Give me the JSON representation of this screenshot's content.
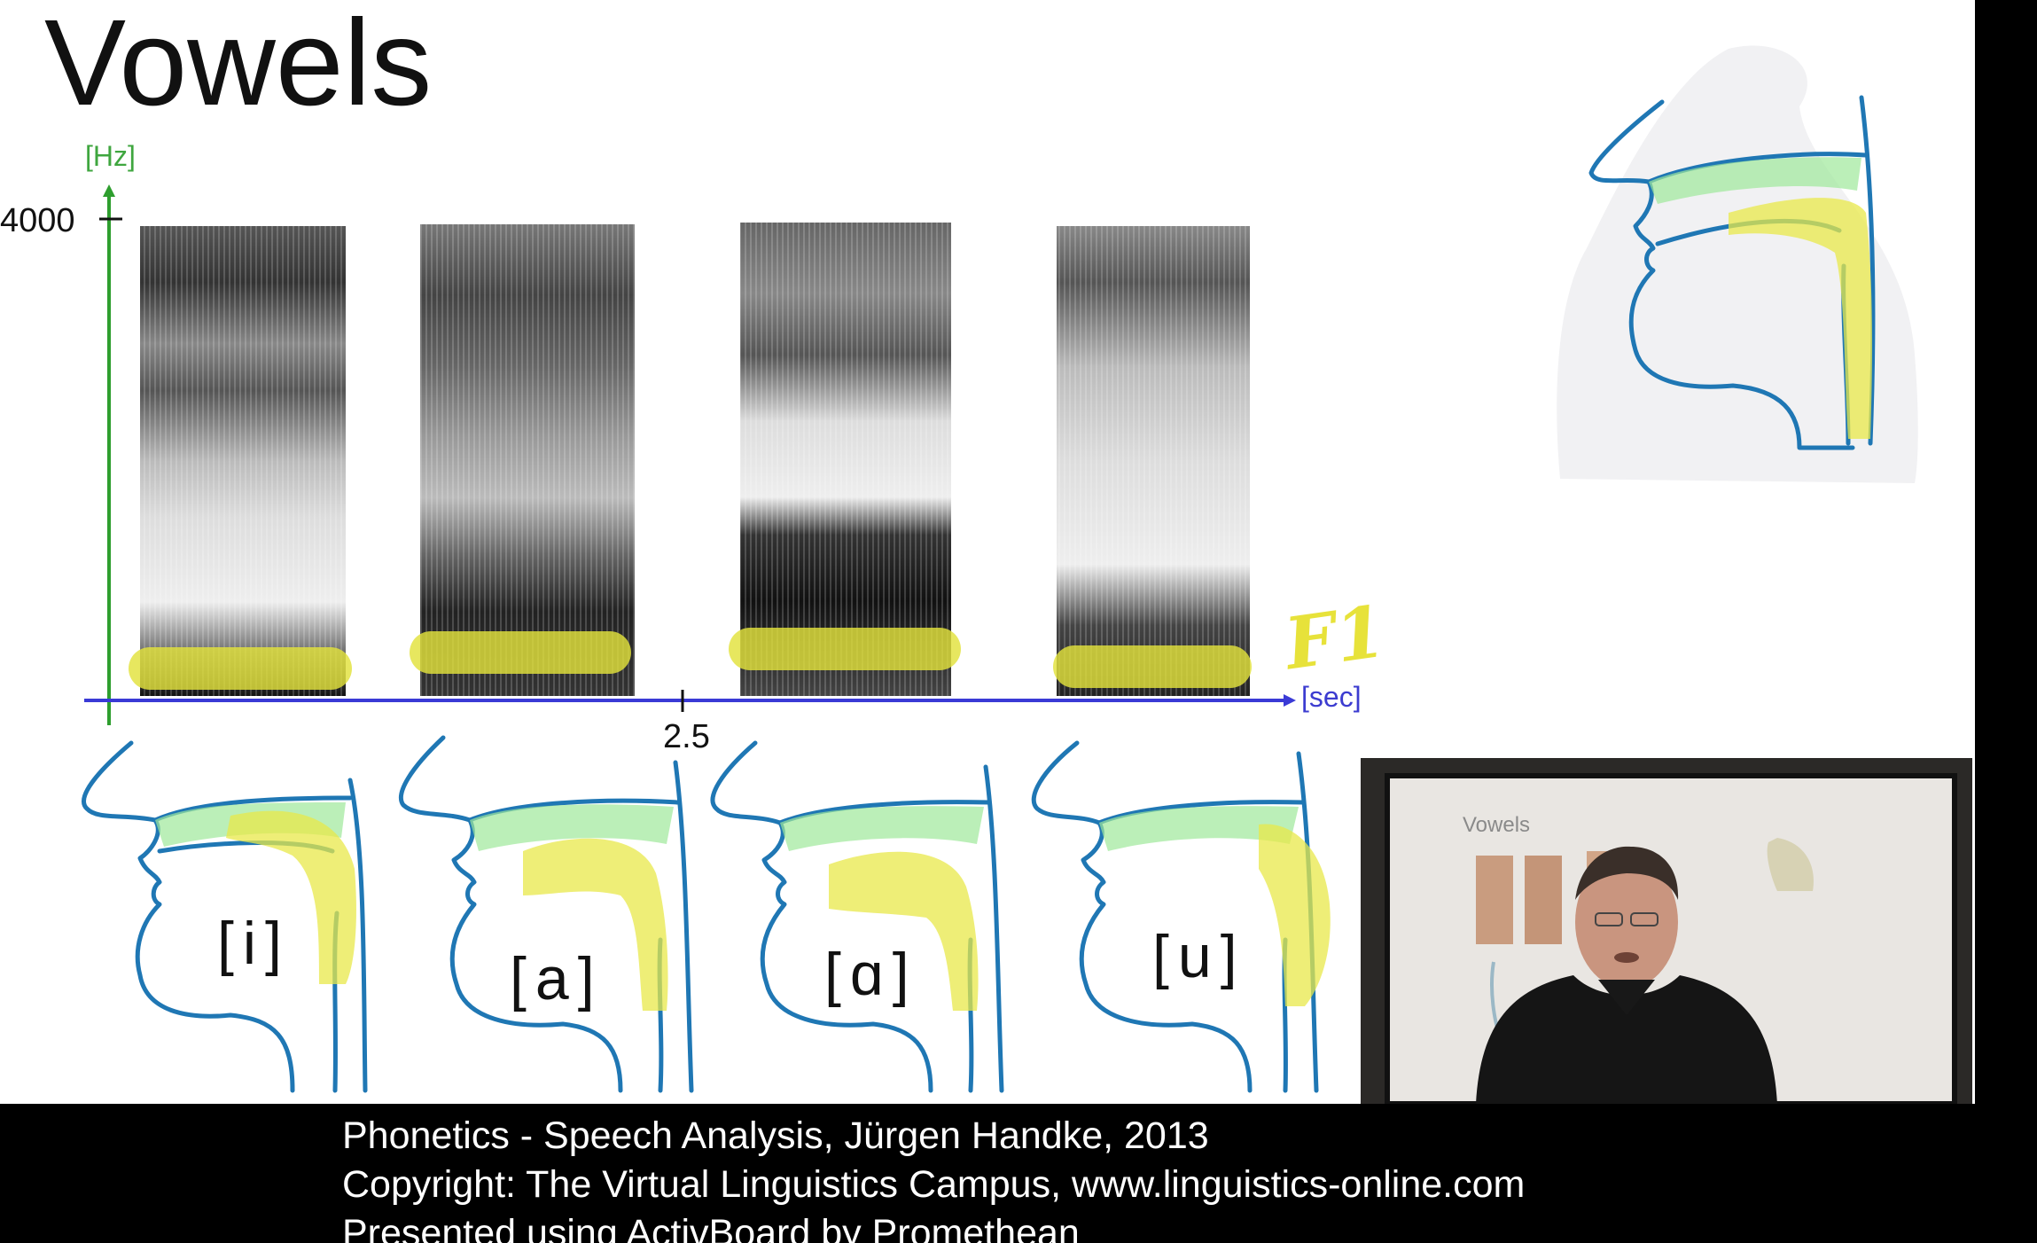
{
  "slide": {
    "title": "Vowels"
  },
  "spectrogram": {
    "y_axis_unit": "[Hz]",
    "y_tick": "4000",
    "x_axis_unit": "[sec]",
    "x_tick": "2.5",
    "formant_annotation": "F1",
    "colors": {
      "y_axis": "#2e9e2e",
      "x_axis": "#3a3ad6",
      "formant_highlight": "#e2e23c"
    }
  },
  "vowels": [
    {
      "symbol": "[i]"
    },
    {
      "symbol": "[a]"
    },
    {
      "symbol": "[ɑ]"
    },
    {
      "symbol": "[u]"
    }
  ],
  "video_overlay": {
    "board_title": "Vowels"
  },
  "footer": {
    "line1": "Phonetics - Speech Analysis, Jürgen Handke, 2013",
    "line2": "Copyright: The Virtual Linguistics Campus, www.linguistics-online.com",
    "line3": "Presented using ActivBoard by Promethean"
  }
}
